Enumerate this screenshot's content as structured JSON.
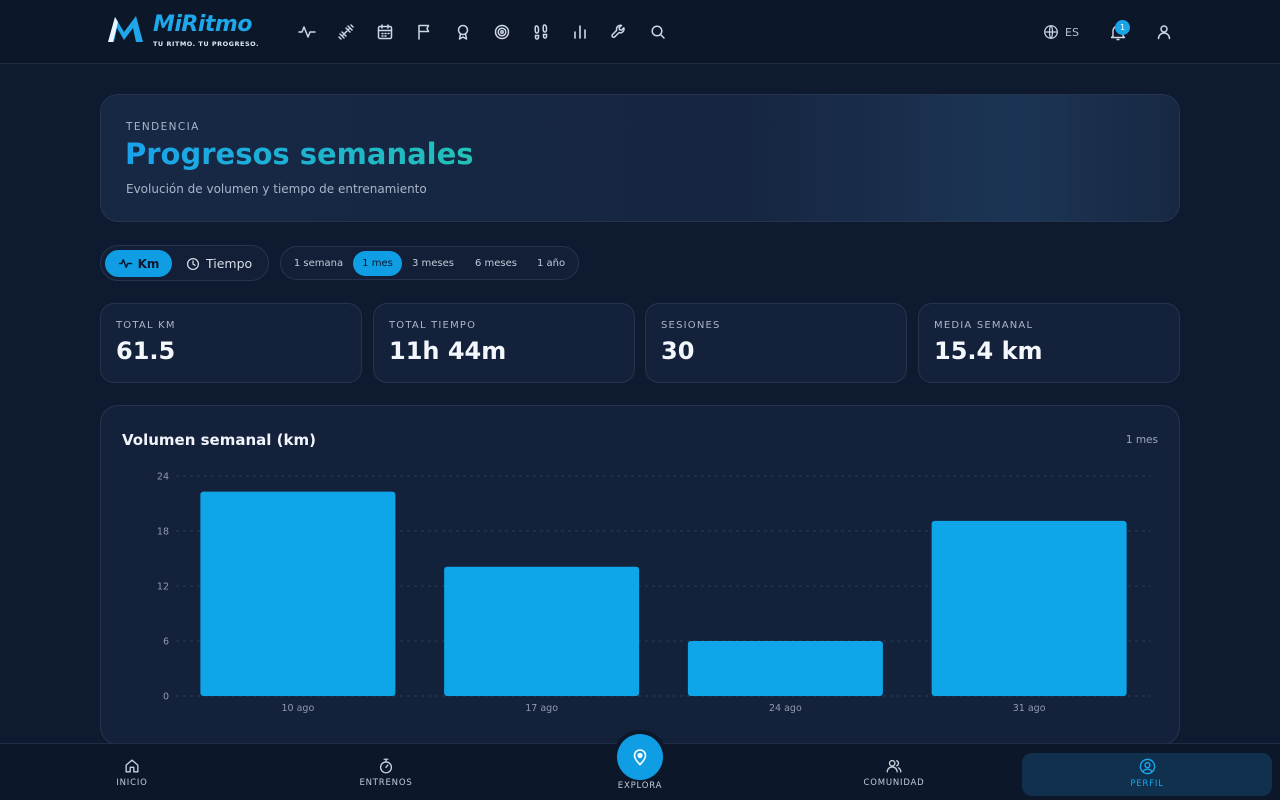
{
  "app": {
    "name": "MiRitmo",
    "tagline": "TU RITMO. TU PROGRESO.",
    "language": "ES",
    "notification_count": "1"
  },
  "nav_icons": [
    "activity-icon",
    "dumbbell-icon",
    "calendar-icon",
    "flag-icon",
    "medal-icon",
    "target-icon",
    "footprints-icon",
    "bar-chart-icon",
    "wrench-icon",
    "search-icon"
  ],
  "hero": {
    "eyebrow": "TENDENCIA",
    "title": "Progresos semanales",
    "subtitle": "Evolución de volumen y tiempo de entrenamiento"
  },
  "metric_toggle": {
    "km": "Km",
    "time": "Tiempo",
    "selected": "Km"
  },
  "range_toggle": {
    "options": [
      "1 semana",
      "1 mes",
      "3 meses",
      "6 meses",
      "1 año"
    ],
    "selected": "1 mes"
  },
  "stats": [
    {
      "label": "TOTAL KM",
      "value": "61.5"
    },
    {
      "label": "TOTAL TIEMPO",
      "value": "11h 44m"
    },
    {
      "label": "SESIONES",
      "value": "30"
    },
    {
      "label": "MEDIA SEMANAL",
      "value": "15.4 km"
    }
  ],
  "chart_card": {
    "title": "Volumen semanal (km)",
    "range": "1 mes"
  },
  "chart_data": {
    "type": "bar",
    "title": "Volumen semanal (km)",
    "categories": [
      "10 ago",
      "17 ago",
      "24 ago",
      "31 ago"
    ],
    "values": [
      22.3,
      14.1,
      6.0,
      19.1
    ],
    "yticks": [
      0,
      6,
      12,
      18,
      24
    ],
    "ylim": [
      0,
      24
    ],
    "grid": true,
    "bar_color": "#0ea5e9"
  },
  "bottom_nav": {
    "items": [
      {
        "label": "INICIO",
        "icon": "home-icon"
      },
      {
        "label": "ENTRENOS",
        "icon": "stopwatch-icon"
      },
      {
        "label": "EXPLORA",
        "icon": "map-pin-icon"
      },
      {
        "label": "COMUNIDAD",
        "icon": "users-icon"
      },
      {
        "label": "PERFIL",
        "icon": "user-circle-icon"
      }
    ],
    "active": "PERFIL"
  },
  "colors": {
    "background": "#0e1a30",
    "accent": "#0f9ee3",
    "title_gradient_start": "#1aa2ec",
    "title_gradient_end": "#22c2b7"
  }
}
